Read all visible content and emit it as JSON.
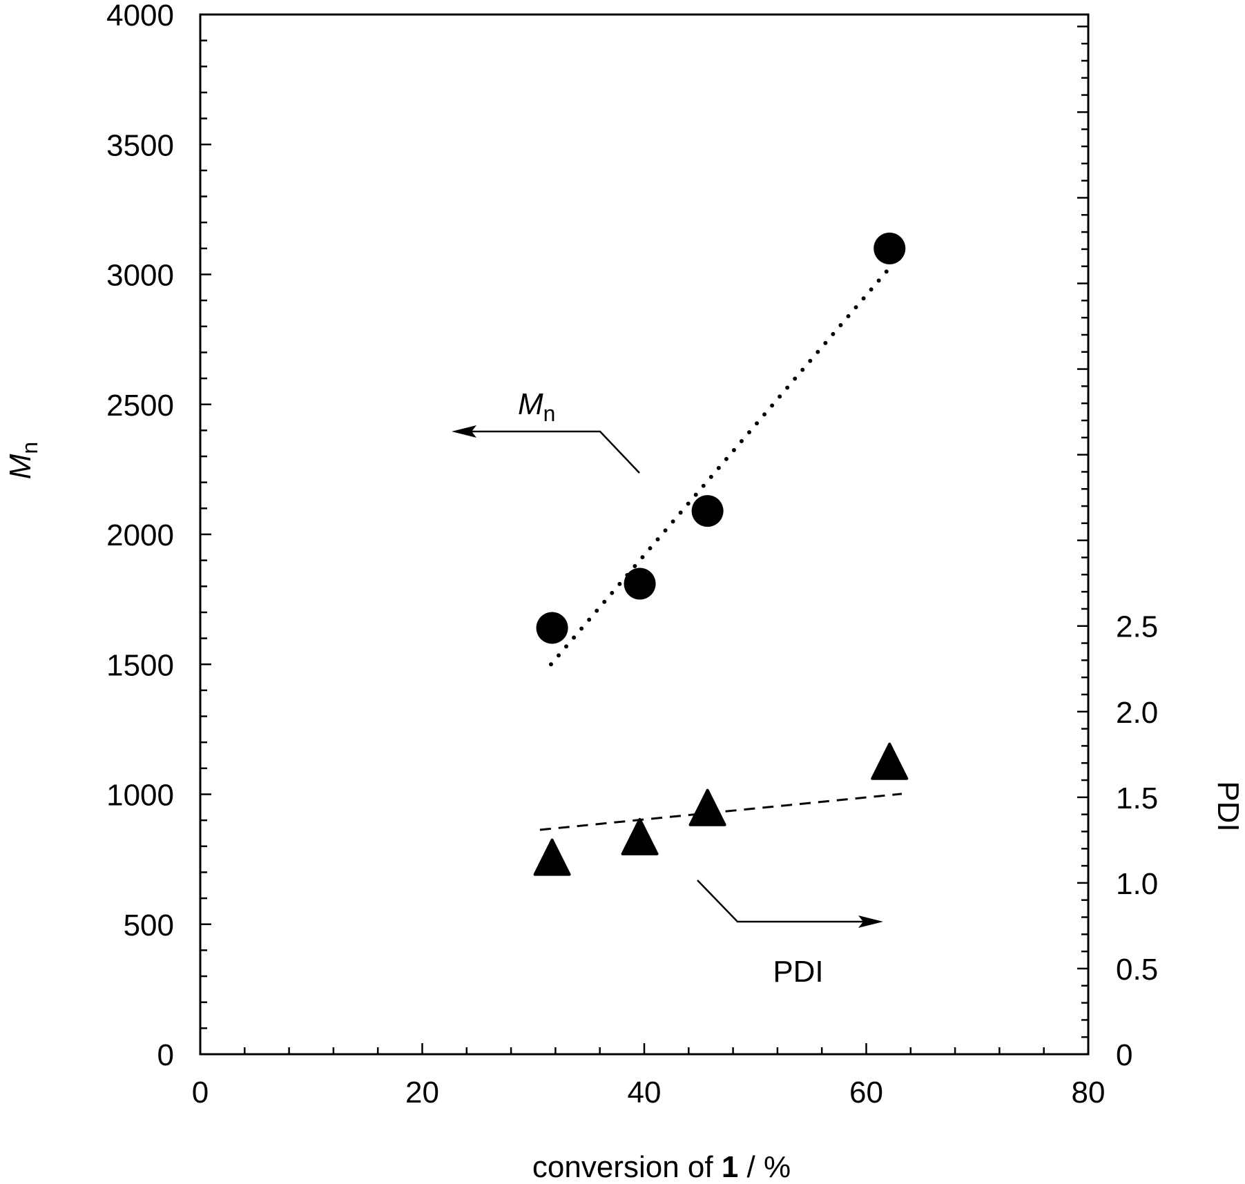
{
  "chart_data": {
    "type": "scatter",
    "xlabel": {
      "prefix": "conversion of ",
      "bold": "1",
      "suffix": " / %"
    },
    "ylabel_left": {
      "main": "M",
      "sub": "n"
    },
    "ylabel_right": "PDI",
    "xlim": [
      0,
      80
    ],
    "ylim_left": [
      0,
      4000
    ],
    "ylim_right": [
      0,
      6.07
    ],
    "x_ticks": [
      "0",
      "20",
      "40",
      "60",
      "80"
    ],
    "y_left_ticks": [
      "0",
      "500",
      "1000",
      "1500",
      "2000",
      "2500",
      "3000",
      "3500",
      "4000"
    ],
    "y_right_ticks": [
      "0",
      "0.5",
      "1.0",
      "1.5",
      "2.0",
      "2.5"
    ],
    "grid": false,
    "series": [
      {
        "axis": "left",
        "marker": "circle",
        "x": [
          31.7,
          39.6,
          45.7,
          62.1
        ],
        "y": [
          1640,
          1810,
          2090,
          3100
        ],
        "fit": {
          "style": "dotted",
          "x": [
            31.6,
            62.1
          ],
          "y": [
            1500,
            3025
          ]
        }
      },
      {
        "axis": "right",
        "marker": "triangle",
        "x": [
          31.7,
          39.6,
          45.7,
          62.1
        ],
        "y": [
          1.13,
          1.25,
          1.42,
          1.69
        ],
        "fit": {
          "style": "dashed",
          "x": [
            30.6,
            63.2
          ],
          "y": [
            1.31,
            1.52
          ]
        }
      }
    ],
    "annotations": [
      {
        "text_main": "M",
        "text_sub": "n",
        "arrow": "left"
      },
      {
        "text": "PDI",
        "arrow": "right"
      }
    ],
    "colors": {
      "ink": "#000000",
      "background": "#ffffff"
    }
  }
}
